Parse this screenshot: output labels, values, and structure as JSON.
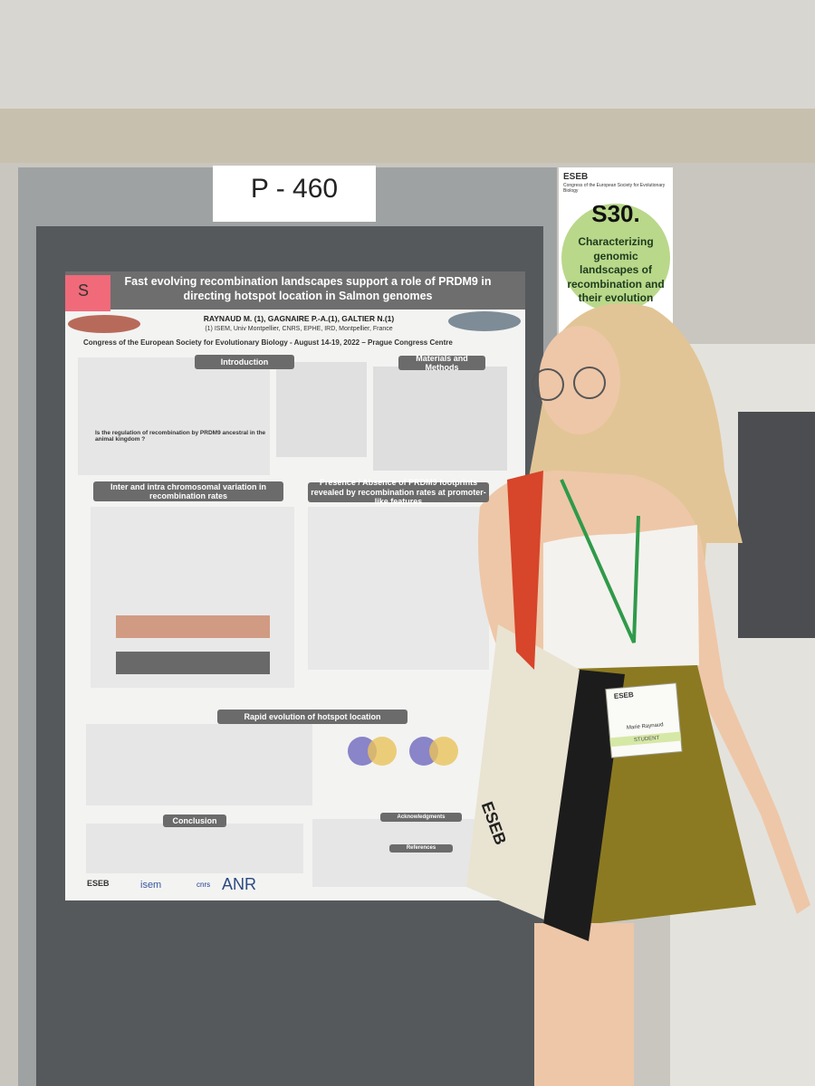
{
  "sign": {
    "board_number": "P - 460"
  },
  "session_card": {
    "org": "ESEB",
    "subtitle": "Congress of the European Society for Evolutionary Biology",
    "code": "S30.",
    "topic": "Characterizing genomic landscapes of recombination and their evolution"
  },
  "poster": {
    "tag": "S",
    "title": "Fast evolving recombination landscapes support a role of PRDM9 in directing hotspot location in Salmon genomes",
    "authors": "RAYNAUD M. (1), GAGNAIRE P.-A.(1), GALTIER N.(1)",
    "affiliation": "(1) ISEM, Univ Montpellier, CNRS, EPHE, IRD, Montpellier, France",
    "congress": "Congress of the European Society for Evolutionary Biology - August 14-19, 2022 – Prague Congress Centre",
    "question": "Is the regulation of recombination by PRDM9 ancestral in the animal kingdom ?",
    "sections": [
      "Introduction",
      "Materials and Methods",
      "Inter and intra chromosomal variation in recombination rates",
      "Presence / Absence of PRDM9 footprints revealed by recombination rates at promoter-like features",
      "Rapid evolution of hotspot location",
      "Conclusion",
      "Acknowledgments",
      "References"
    ],
    "logos": [
      "ESEB",
      "isem",
      "cnrs",
      "ANR"
    ]
  },
  "badge": {
    "org": "ESEB",
    "name": "Marie Raynaud",
    "role": "STUDENT"
  },
  "bag": {
    "text": "ESEB"
  }
}
